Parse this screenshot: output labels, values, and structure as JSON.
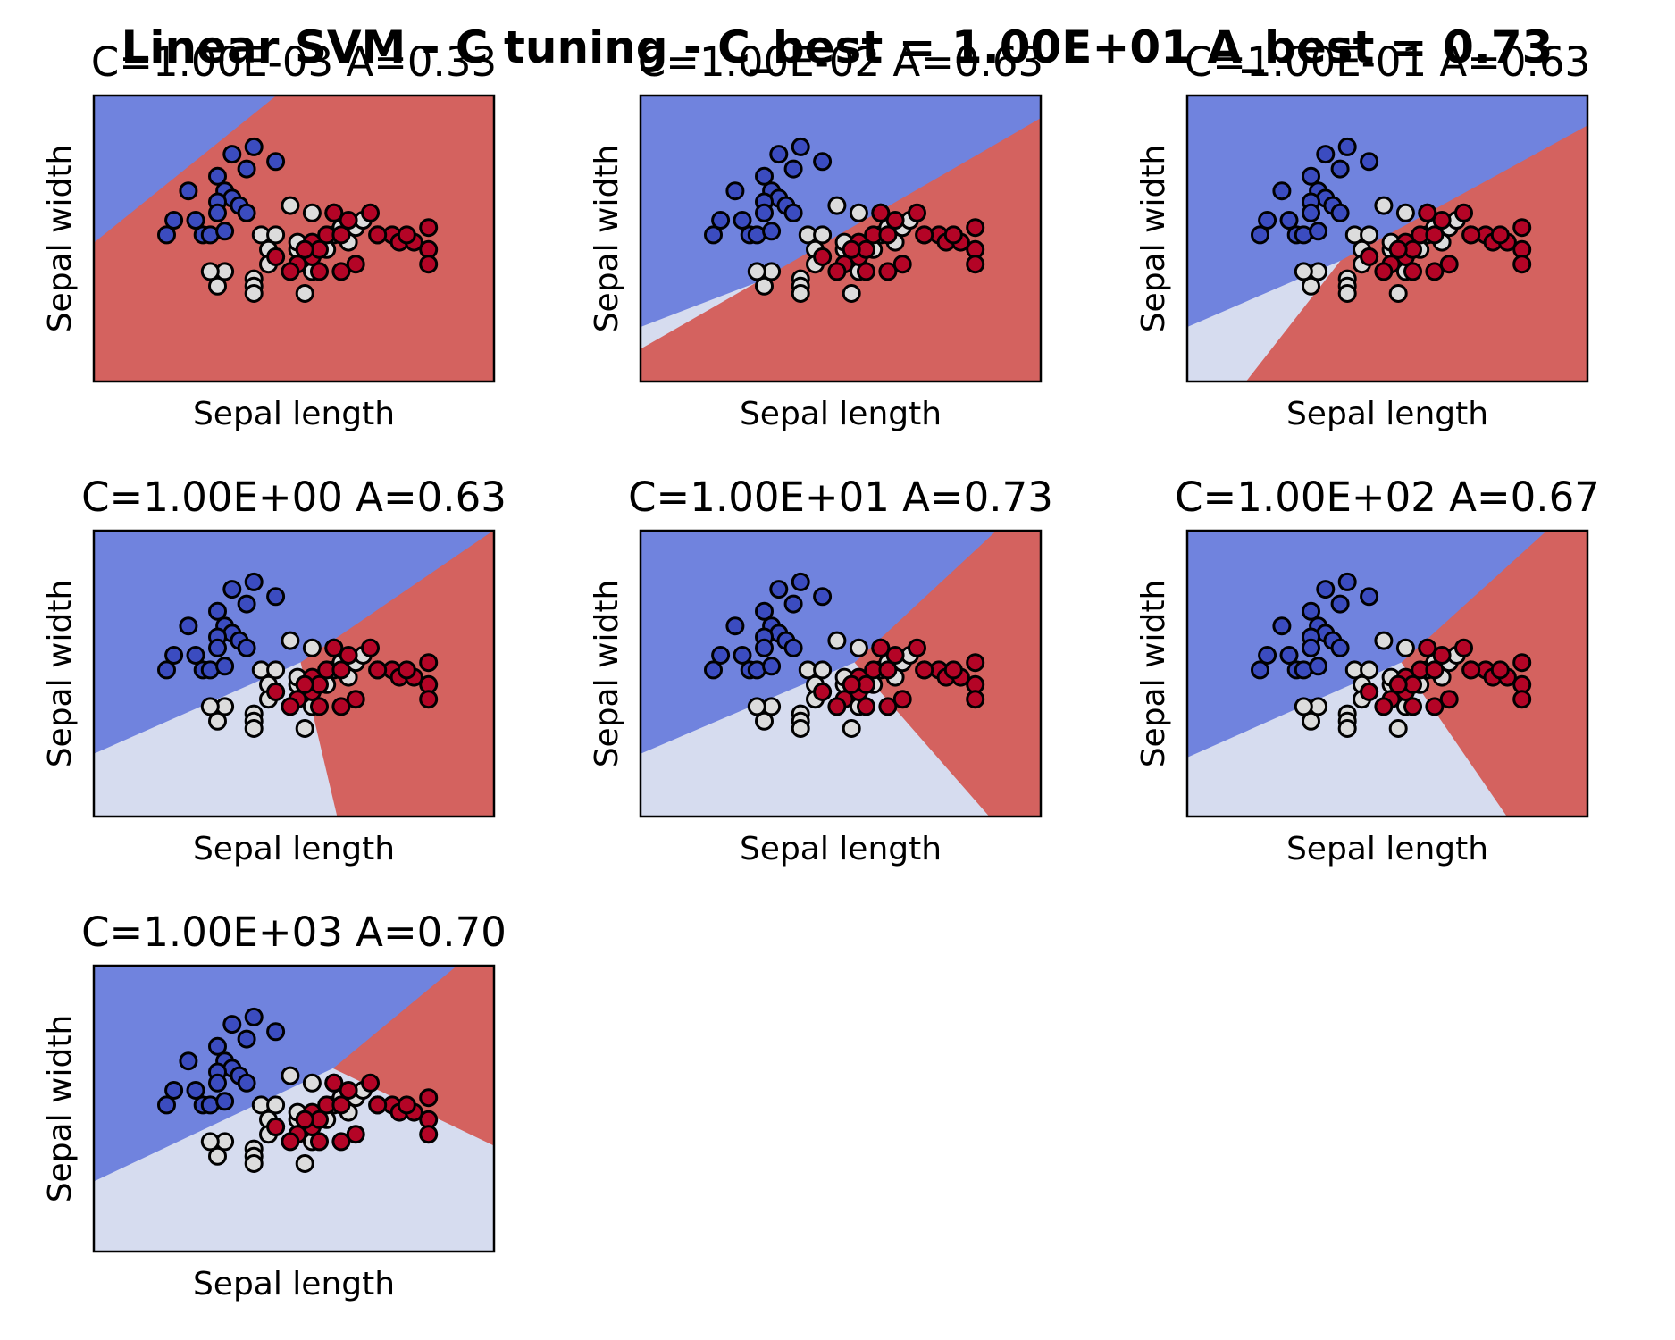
{
  "figure": {
    "title": "Linear SVM - C tuning - C_best = 1.00E+01 A_best = 0.73"
  },
  "colors": {
    "region_class0": "#7083de",
    "region_class1": "#d6dcef",
    "region_class2": "#d4625f",
    "point_class0": "#3b4cc0",
    "point_class1": "#dcdcdc",
    "point_class2": "#b40426",
    "point_edge": "#000000"
  },
  "chart_data": [
    {
      "type": "scatter",
      "title": "C=1.00E-03 A=0.33",
      "xlabel": "Sepal length",
      "ylabel": "Sepal width",
      "xlim": [
        3.3,
        8.8
      ],
      "ylim": [
        1.0,
        4.9
      ],
      "xticks": [],
      "yticks": [],
      "legend": "none",
      "decision_regions": [
        {
          "class": 2,
          "polygon": [
            [
              3.3,
              1.0
            ],
            [
              8.8,
              1.0
            ],
            [
              8.8,
              4.9
            ],
            [
              5.8,
              4.9
            ],
            [
              3.3,
              2.9
            ]
          ]
        },
        {
          "class": 0,
          "polygon": [
            [
              3.3,
              2.9
            ],
            [
              5.8,
              4.9
            ],
            [
              3.3,
              4.9
            ]
          ]
        }
      ]
    },
    {
      "type": "scatter",
      "title": "C=1.00E-02 A=0.63",
      "xlabel": "Sepal length",
      "ylabel": "Sepal width",
      "xlim": [
        3.3,
        8.8
      ],
      "ylim": [
        1.0,
        4.9
      ],
      "xticks": [],
      "yticks": [],
      "legend": "none",
      "decision_regions": [
        {
          "class": 2,
          "polygon": [
            [
              3.3,
              1.0
            ],
            [
              8.8,
              1.0
            ],
            [
              8.8,
              4.6
            ],
            [
              3.3,
              1.45
            ]
          ]
        },
        {
          "class": 1,
          "polygon": [
            [
              3.3,
              1.45
            ],
            [
              4.88,
              2.35
            ],
            [
              3.3,
              1.75
            ]
          ]
        },
        {
          "class": 0,
          "polygon": [
            [
              3.3,
              1.75
            ],
            [
              4.88,
              2.35
            ],
            [
              8.8,
              4.6
            ],
            [
              8.8,
              4.9
            ],
            [
              3.3,
              4.9
            ]
          ]
        }
      ]
    },
    {
      "type": "scatter",
      "title": "C=1.00E-01 A=0.63",
      "xlabel": "Sepal length",
      "ylabel": "Sepal width",
      "xlim": [
        3.3,
        8.8
      ],
      "ylim": [
        1.0,
        4.9
      ],
      "xticks": [],
      "yticks": [],
      "legend": "none",
      "decision_regions": [
        {
          "class": 2,
          "polygon": [
            [
              4.1,
              1.0
            ],
            [
              8.8,
              1.0
            ],
            [
              8.8,
              4.5
            ],
            [
              5.4,
              2.65
            ]
          ]
        },
        {
          "class": 1,
          "polygon": [
            [
              3.3,
              1.0
            ],
            [
              4.1,
              1.0
            ],
            [
              5.4,
              2.65
            ],
            [
              3.3,
              1.75
            ]
          ]
        },
        {
          "class": 0,
          "polygon": [
            [
              3.3,
              1.75
            ],
            [
              5.4,
              2.65
            ],
            [
              8.8,
              4.5
            ],
            [
              8.8,
              4.9
            ],
            [
              3.3,
              4.9
            ]
          ]
        }
      ]
    },
    {
      "type": "scatter",
      "title": "C=1.00E+00 A=0.63",
      "xlabel": "Sepal length",
      "ylabel": "Sepal width",
      "xlim": [
        3.3,
        8.8
      ],
      "ylim": [
        1.0,
        4.9
      ],
      "xticks": [],
      "yticks": [],
      "legend": "none",
      "decision_regions": [
        {
          "class": 0,
          "polygon": [
            [
              3.3,
              4.9
            ],
            [
              8.8,
              4.9
            ],
            [
              6.15,
              3.1
            ],
            [
              3.3,
              1.85
            ]
          ]
        },
        {
          "class": 1,
          "polygon": [
            [
              3.3,
              1.85
            ],
            [
              6.15,
              3.1
            ],
            [
              6.65,
              1.0
            ],
            [
              3.3,
              1.0
            ]
          ]
        },
        {
          "class": 2,
          "polygon": [
            [
              6.15,
              3.1
            ],
            [
              8.8,
              4.9
            ],
            [
              8.8,
              1.0
            ],
            [
              6.65,
              1.0
            ]
          ]
        }
      ]
    },
    {
      "type": "scatter",
      "title": "C=1.00E+01 A=0.73",
      "xlabel": "Sepal length",
      "ylabel": "Sepal width",
      "xlim": [
        3.3,
        8.8
      ],
      "ylim": [
        1.0,
        4.9
      ],
      "xticks": [],
      "yticks": [],
      "legend": "none",
      "decision_regions": [
        {
          "class": 0,
          "polygon": [
            [
              3.3,
              4.9
            ],
            [
              8.2,
              4.9
            ],
            [
              6.25,
              3.1
            ],
            [
              3.3,
              1.85
            ]
          ]
        },
        {
          "class": 1,
          "polygon": [
            [
              3.3,
              1.85
            ],
            [
              6.25,
              3.1
            ],
            [
              8.1,
              1.0
            ],
            [
              3.3,
              1.0
            ]
          ]
        },
        {
          "class": 2,
          "polygon": [
            [
              6.25,
              3.1
            ],
            [
              8.2,
              4.9
            ],
            [
              8.8,
              4.9
            ],
            [
              8.8,
              1.0
            ],
            [
              8.1,
              1.0
            ]
          ]
        }
      ]
    },
    {
      "type": "scatter",
      "title": "C=1.00E+02 A=0.67",
      "xlabel": "Sepal length",
      "ylabel": "Sepal width",
      "xlim": [
        3.3,
        8.8
      ],
      "ylim": [
        1.0,
        4.9
      ],
      "xticks": [],
      "yticks": [],
      "legend": "none",
      "decision_regions": [
        {
          "class": 0,
          "polygon": [
            [
              3.3,
              4.9
            ],
            [
              8.25,
              4.9
            ],
            [
              6.25,
              3.1
            ],
            [
              3.3,
              1.8
            ]
          ]
        },
        {
          "class": 1,
          "polygon": [
            [
              3.3,
              1.8
            ],
            [
              6.25,
              3.1
            ],
            [
              7.7,
              1.0
            ],
            [
              3.3,
              1.0
            ]
          ]
        },
        {
          "class": 2,
          "polygon": [
            [
              6.25,
              3.1
            ],
            [
              8.25,
              4.9
            ],
            [
              8.8,
              4.9
            ],
            [
              8.8,
              1.0
            ],
            [
              7.7,
              1.0
            ]
          ]
        }
      ]
    },
    {
      "type": "scatter",
      "title": "C=1.00E+03 A=0.70",
      "xlabel": "Sepal length",
      "ylabel": "Sepal width",
      "xlim": [
        3.3,
        8.8
      ],
      "ylim": [
        1.0,
        4.9
      ],
      "xticks": [],
      "yticks": [],
      "legend": "none",
      "decision_regions": [
        {
          "class": 0,
          "polygon": [
            [
              3.3,
              4.9
            ],
            [
              8.3,
              4.9
            ],
            [
              6.6,
              3.5
            ],
            [
              3.3,
              1.95
            ]
          ]
        },
        {
          "class": 1,
          "polygon": [
            [
              3.3,
              1.95
            ],
            [
              6.6,
              3.5
            ],
            [
              8.8,
              2.45
            ],
            [
              8.8,
              1.0
            ],
            [
              3.3,
              1.0
            ]
          ]
        },
        {
          "class": 2,
          "polygon": [
            [
              6.6,
              3.5
            ],
            [
              8.3,
              4.9
            ],
            [
              8.8,
              4.9
            ],
            [
              8.8,
              2.45
            ]
          ]
        }
      ]
    }
  ],
  "shared_points": [
    {
      "x": 5.2,
      "y": 4.1,
      "c": 0
    },
    {
      "x": 5.5,
      "y": 4.2,
      "c": 0
    },
    {
      "x": 5.8,
      "y": 4.0,
      "c": 0
    },
    {
      "x": 5.0,
      "y": 3.8,
      "c": 0
    },
    {
      "x": 5.4,
      "y": 3.9,
      "c": 0
    },
    {
      "x": 4.6,
      "y": 3.6,
      "c": 0
    },
    {
      "x": 5.1,
      "y": 3.6,
      "c": 0
    },
    {
      "x": 5.2,
      "y": 3.5,
      "c": 0
    },
    {
      "x": 5.0,
      "y": 3.45,
      "c": 0
    },
    {
      "x": 5.3,
      "y": 3.4,
      "c": 0
    },
    {
      "x": 4.4,
      "y": 3.2,
      "c": 0
    },
    {
      "x": 4.7,
      "y": 3.2,
      "c": 0
    },
    {
      "x": 5.0,
      "y": 3.3,
      "c": 0
    },
    {
      "x": 4.3,
      "y": 3.0,
      "c": 0
    },
    {
      "x": 4.8,
      "y": 3.0,
      "c": 0
    },
    {
      "x": 4.9,
      "y": 3.0,
      "c": 0
    },
    {
      "x": 5.1,
      "y": 3.05,
      "c": 0
    },
    {
      "x": 5.4,
      "y": 3.3,
      "c": 0
    },
    {
      "x": 5.0,
      "y": 2.3,
      "c": 1
    },
    {
      "x": 5.1,
      "y": 2.5,
      "c": 1
    },
    {
      "x": 5.5,
      "y": 2.4,
      "c": 1
    },
    {
      "x": 5.5,
      "y": 2.3,
      "c": 1
    },
    {
      "x": 5.5,
      "y": 2.2,
      "c": 1
    },
    {
      "x": 5.6,
      "y": 3.0,
      "c": 1
    },
    {
      "x": 5.7,
      "y": 2.8,
      "c": 1
    },
    {
      "x": 5.8,
      "y": 2.7,
      "c": 1
    },
    {
      "x": 5.8,
      "y": 3.0,
      "c": 1
    },
    {
      "x": 6.0,
      "y": 3.4,
      "c": 1
    },
    {
      "x": 6.1,
      "y": 2.8,
      "c": 1
    },
    {
      "x": 6.1,
      "y": 2.9,
      "c": 1
    },
    {
      "x": 6.2,
      "y": 2.2,
      "c": 1
    },
    {
      "x": 6.3,
      "y": 2.5,
      "c": 1
    },
    {
      "x": 6.3,
      "y": 3.3,
      "c": 1
    },
    {
      "x": 6.5,
      "y": 2.8,
      "c": 1
    },
    {
      "x": 6.6,
      "y": 3.0,
      "c": 1
    },
    {
      "x": 6.7,
      "y": 3.1,
      "c": 1
    },
    {
      "x": 6.8,
      "y": 2.9,
      "c": 1
    },
    {
      "x": 6.9,
      "y": 3.1,
      "c": 1
    },
    {
      "x": 7.0,
      "y": 3.2,
      "c": 1
    },
    {
      "x": 4.9,
      "y": 2.5,
      "c": 1
    },
    {
      "x": 5.7,
      "y": 2.6,
      "c": 1
    },
    {
      "x": 5.8,
      "y": 2.7,
      "c": 2
    },
    {
      "x": 6.1,
      "y": 2.6,
      "c": 2
    },
    {
      "x": 6.2,
      "y": 2.8,
      "c": 2
    },
    {
      "x": 6.3,
      "y": 2.7,
      "c": 2
    },
    {
      "x": 6.3,
      "y": 2.9,
      "c": 2
    },
    {
      "x": 6.4,
      "y": 2.5,
      "c": 2
    },
    {
      "x": 6.4,
      "y": 2.8,
      "c": 2
    },
    {
      "x": 6.5,
      "y": 3.0,
      "c": 2
    },
    {
      "x": 6.6,
      "y": 3.3,
      "c": 2
    },
    {
      "x": 6.7,
      "y": 2.5,
      "c": 2
    },
    {
      "x": 6.7,
      "y": 3.0,
      "c": 2
    },
    {
      "x": 6.8,
      "y": 3.2,
      "c": 2
    },
    {
      "x": 7.1,
      "y": 3.3,
      "c": 2
    },
    {
      "x": 7.2,
      "y": 3.0,
      "c": 2
    },
    {
      "x": 7.4,
      "y": 3.0,
      "c": 2
    },
    {
      "x": 7.5,
      "y": 2.9,
      "c": 2
    },
    {
      "x": 7.7,
      "y": 2.9,
      "c": 2
    },
    {
      "x": 7.6,
      "y": 3.0,
      "c": 2
    },
    {
      "x": 7.9,
      "y": 2.8,
      "c": 2
    },
    {
      "x": 7.9,
      "y": 2.6,
      "c": 2
    },
    {
      "x": 7.9,
      "y": 3.1,
      "c": 2
    },
    {
      "x": 6.0,
      "y": 2.5,
      "c": 2
    },
    {
      "x": 6.2,
      "y": 2.8,
      "c": 2
    },
    {
      "x": 6.9,
      "y": 2.6,
      "c": 2
    },
    {
      "x": 6.6,
      "y": 3.3,
      "c": 2
    },
    {
      "x": 7.2,
      "y": 3.0,
      "c": 2
    }
  ]
}
